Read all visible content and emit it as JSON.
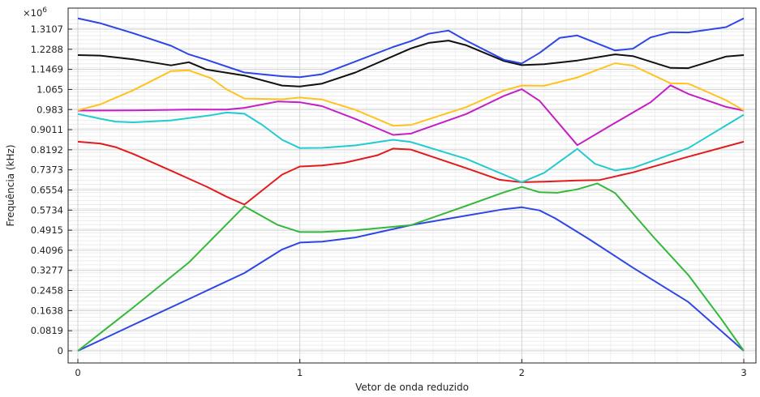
{
  "chart_data": {
    "type": "line",
    "xlabel": "Vetor de onda reduzido",
    "ylabel": "Frequência (kHz)",
    "y_multiplier": "×10",
    "y_multiplier_exp": "6",
    "xlim": [
      0,
      3
    ],
    "ylim": [
      -0.01,
      1.355
    ],
    "x_ticks": [
      {
        "value": 0,
        "label": "0"
      },
      {
        "value": 1,
        "label": "1"
      },
      {
        "value": 2,
        "label": "2"
      },
      {
        "value": 3,
        "label": "3"
      }
    ],
    "y_ticks": [
      {
        "value": 0,
        "label": "0"
      },
      {
        "value": 0.0819,
        "label": "0.0819"
      },
      {
        "value": 0.1638,
        "label": "0.1638"
      },
      {
        "value": 0.2458,
        "label": "0.2458"
      },
      {
        "value": 0.3277,
        "label": "0.3277"
      },
      {
        "value": 0.4096,
        "label": "0.4096"
      },
      {
        "value": 0.4915,
        "label": "0.4915"
      },
      {
        "value": 0.5734,
        "label": "0.5734"
      },
      {
        "value": 0.6554,
        "label": "0.6554"
      },
      {
        "value": 0.7373,
        "label": "0.7373"
      },
      {
        "value": 0.8192,
        "label": "0.8192"
      },
      {
        "value": 0.9011,
        "label": "0.9011"
      },
      {
        "value": 0.983,
        "label": "0.983"
      },
      {
        "value": 1.065,
        "label": "1.065"
      },
      {
        "value": 1.1469,
        "label": "1.1469"
      },
      {
        "value": 1.2288,
        "label": "1.2288"
      },
      {
        "value": 1.3107,
        "label": "1.3107"
      }
    ],
    "grid": true,
    "series": [
      {
        "color": "#2e46e6",
        "points": [
          [
            0,
            0
          ],
          [
            0.25,
            0.106
          ],
          [
            0.5,
            0.211
          ],
          [
            0.75,
            0.317
          ],
          [
            0.92,
            0.413
          ],
          [
            1,
            0.441
          ],
          [
            1.1,
            0.445
          ],
          [
            1.25,
            0.462
          ],
          [
            1.5,
            0.512
          ],
          [
            1.75,
            0.551
          ],
          [
            1.92,
            0.577
          ],
          [
            2,
            0.585
          ],
          [
            2.08,
            0.572
          ],
          [
            2.15,
            0.54
          ],
          [
            2.3,
            0.457
          ],
          [
            2.5,
            0.339
          ],
          [
            2.75,
            0.199
          ],
          [
            3,
            0
          ]
        ]
      },
      {
        "color": "#34b83a",
        "points": [
          [
            0,
            0
          ],
          [
            0.25,
            0.177
          ],
          [
            0.5,
            0.36
          ],
          [
            0.75,
            0.589
          ],
          [
            0.9,
            0.513
          ],
          [
            1,
            0.484
          ],
          [
            1.1,
            0.484
          ],
          [
            1.25,
            0.491
          ],
          [
            1.5,
            0.512
          ],
          [
            1.75,
            0.591
          ],
          [
            1.92,
            0.646
          ],
          [
            2,
            0.668
          ],
          [
            2.08,
            0.646
          ],
          [
            2.16,
            0.644
          ],
          [
            2.25,
            0.658
          ],
          [
            2.34,
            0.682
          ],
          [
            2.42,
            0.643
          ],
          [
            2.6,
            0.457
          ],
          [
            2.75,
            0.309
          ],
          [
            2.9,
            0.128
          ],
          [
            3,
            0
          ]
        ]
      },
      {
        "color": "#e31b1b",
        "points": [
          [
            0,
            0.852
          ],
          [
            0.1,
            0.845
          ],
          [
            0.17,
            0.83
          ],
          [
            0.25,
            0.802
          ],
          [
            0.42,
            0.734
          ],
          [
            0.58,
            0.669
          ],
          [
            0.67,
            0.628
          ],
          [
            0.75,
            0.596
          ],
          [
            0.92,
            0.718
          ],
          [
            1,
            0.751
          ],
          [
            1.1,
            0.755
          ],
          [
            1.2,
            0.766
          ],
          [
            1.35,
            0.797
          ],
          [
            1.42,
            0.824
          ],
          [
            1.5,
            0.82
          ],
          [
            1.75,
            0.744
          ],
          [
            1.9,
            0.697
          ],
          [
            2,
            0.687
          ],
          [
            2.1,
            0.689
          ],
          [
            2.25,
            0.694
          ],
          [
            2.35,
            0.696
          ],
          [
            2.5,
            0.727
          ],
          [
            2.75,
            0.791
          ],
          [
            3,
            0.852
          ]
        ]
      },
      {
        "color": "#22cbcf",
        "points": [
          [
            0,
            0.965
          ],
          [
            0.1,
            0.946
          ],
          [
            0.17,
            0.934
          ],
          [
            0.25,
            0.931
          ],
          [
            0.42,
            0.939
          ],
          [
            0.6,
            0.96
          ],
          [
            0.67,
            0.971
          ],
          [
            0.75,
            0.966
          ],
          [
            0.83,
            0.921
          ],
          [
            0.92,
            0.86
          ],
          [
            1,
            0.826
          ],
          [
            1.1,
            0.827
          ],
          [
            1.25,
            0.837
          ],
          [
            1.42,
            0.86
          ],
          [
            1.5,
            0.851
          ],
          [
            1.75,
            0.782
          ],
          [
            2,
            0.687
          ],
          [
            2.1,
            0.725
          ],
          [
            2.25,
            0.823
          ],
          [
            2.33,
            0.762
          ],
          [
            2.42,
            0.735
          ],
          [
            2.5,
            0.745
          ],
          [
            2.75,
            0.826
          ],
          [
            3,
            0.962
          ]
        ]
      },
      {
        "color": "#c41fc4",
        "points": [
          [
            0,
            0.979
          ],
          [
            0.25,
            0.98
          ],
          [
            0.5,
            0.983
          ],
          [
            0.67,
            0.983
          ],
          [
            0.75,
            0.99
          ],
          [
            0.9,
            1.016
          ],
          [
            1,
            1.013
          ],
          [
            1.1,
            0.997
          ],
          [
            1.25,
            0.945
          ],
          [
            1.42,
            0.88
          ],
          [
            1.5,
            0.885
          ],
          [
            1.75,
            0.965
          ],
          [
            1.92,
            1.039
          ],
          [
            2,
            1.066
          ],
          [
            2.08,
            1.019
          ],
          [
            2.25,
            0.838
          ],
          [
            2.4,
            0.918
          ],
          [
            2.58,
            1.013
          ],
          [
            2.67,
            1.082
          ],
          [
            2.75,
            1.047
          ],
          [
            2.92,
            0.994
          ],
          [
            3,
            0.979
          ]
        ]
      },
      {
        "color": "#ffc21f",
        "points": [
          [
            0,
            0.98
          ],
          [
            0.1,
            1.004
          ],
          [
            0.25,
            1.062
          ],
          [
            0.42,
            1.14
          ],
          [
            0.5,
            1.143
          ],
          [
            0.6,
            1.111
          ],
          [
            0.67,
            1.065
          ],
          [
            0.75,
            1.028
          ],
          [
            0.92,
            1.025
          ],
          [
            1,
            1.032
          ],
          [
            1.1,
            1.024
          ],
          [
            1.25,
            0.982
          ],
          [
            1.42,
            0.917
          ],
          [
            1.5,
            0.92
          ],
          [
            1.75,
            0.993
          ],
          [
            1.92,
            1.061
          ],
          [
            2,
            1.081
          ],
          [
            2.1,
            1.08
          ],
          [
            2.25,
            1.114
          ],
          [
            2.42,
            1.172
          ],
          [
            2.5,
            1.162
          ],
          [
            2.67,
            1.09
          ],
          [
            2.75,
            1.089
          ],
          [
            2.92,
            1.021
          ],
          [
            3,
            0.98
          ]
        ]
      },
      {
        "color": "#111111",
        "points": [
          [
            0,
            1.205
          ],
          [
            0.1,
            1.203
          ],
          [
            0.25,
            1.188
          ],
          [
            0.42,
            1.163
          ],
          [
            0.5,
            1.176
          ],
          [
            0.58,
            1.146
          ],
          [
            0.75,
            1.122
          ],
          [
            0.92,
            1.081
          ],
          [
            1,
            1.077
          ],
          [
            1.1,
            1.089
          ],
          [
            1.25,
            1.134
          ],
          [
            1.5,
            1.232
          ],
          [
            1.58,
            1.255
          ],
          [
            1.67,
            1.264
          ],
          [
            1.75,
            1.245
          ],
          [
            1.92,
            1.181
          ],
          [
            2,
            1.164
          ],
          [
            2.1,
            1.168
          ],
          [
            2.25,
            1.183
          ],
          [
            2.42,
            1.208
          ],
          [
            2.5,
            1.201
          ],
          [
            2.67,
            1.153
          ],
          [
            2.75,
            1.152
          ],
          [
            2.92,
            1.199
          ],
          [
            3,
            1.205
          ]
        ]
      },
      {
        "color": "#2e46e6",
        "points": [
          [
            0,
            1.355
          ],
          [
            0.1,
            1.335
          ],
          [
            0.25,
            1.294
          ],
          [
            0.42,
            1.243
          ],
          [
            0.5,
            1.208
          ],
          [
            0.58,
            1.186
          ],
          [
            0.75,
            1.134
          ],
          [
            0.92,
            1.119
          ],
          [
            1,
            1.115
          ],
          [
            1.1,
            1.127
          ],
          [
            1.25,
            1.179
          ],
          [
            1.42,
            1.238
          ],
          [
            1.5,
            1.262
          ],
          [
            1.58,
            1.292
          ],
          [
            1.67,
            1.305
          ],
          [
            1.75,
            1.264
          ],
          [
            1.92,
            1.186
          ],
          [
            2,
            1.171
          ],
          [
            2.08,
            1.214
          ],
          [
            2.17,
            1.275
          ],
          [
            2.25,
            1.285
          ],
          [
            2.42,
            1.224
          ],
          [
            2.5,
            1.231
          ],
          [
            2.58,
            1.277
          ],
          [
            2.67,
            1.298
          ],
          [
            2.75,
            1.297
          ],
          [
            2.92,
            1.319
          ],
          [
            3,
            1.355
          ]
        ]
      }
    ]
  }
}
